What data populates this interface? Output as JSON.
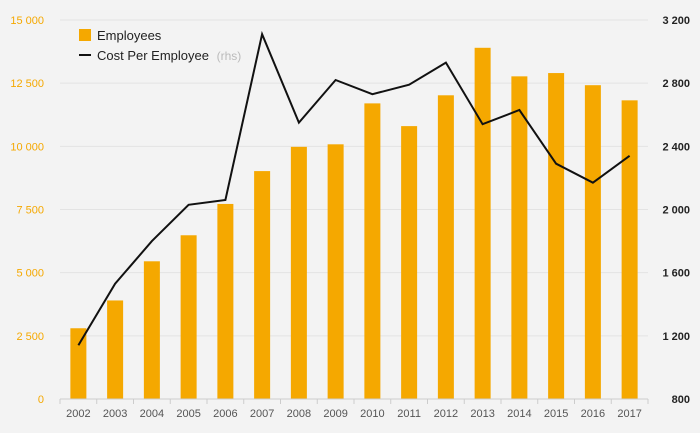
{
  "chart_data": {
    "type": "bar+line",
    "title": "",
    "categories": [
      "2002",
      "2003",
      "2004",
      "2005",
      "2006",
      "2007",
      "2008",
      "2009",
      "2010",
      "2011",
      "2012",
      "2013",
      "2014",
      "2015",
      "2016",
      "2017"
    ],
    "series": [
      {
        "name": "Employees",
        "type": "bar",
        "axis": "left",
        "color": "#f5a800",
        "values": [
          2800,
          3900,
          5450,
          6480,
          7720,
          9020,
          9980,
          10080,
          11700,
          10800,
          12020,
          13900,
          12770,
          12900,
          12420,
          11820
        ]
      },
      {
        "name": "Cost Per Employee",
        "type": "line",
        "axis": "right",
        "color": "#111111",
        "values": [
          1140,
          1530,
          1800,
          2030,
          2060,
          3110,
          2550,
          2820,
          2730,
          2790,
          2930,
          2540,
          2630,
          2290,
          2170,
          2340
        ]
      }
    ],
    "legend": {
      "position": "top-left",
      "items": [
        {
          "label": "Employees",
          "note": ""
        },
        {
          "label": "Cost Per Employee",
          "note": "(rhs)"
        }
      ]
    },
    "y_left": {
      "range": [
        0,
        15000
      ],
      "ticks": [
        0,
        2500,
        5000,
        7500,
        10000,
        12500,
        15000
      ],
      "tick_labels": [
        "0",
        "2 500",
        "5 000",
        "7 500",
        "10 000",
        "12 500",
        "15 000"
      ],
      "color": "#f5a800"
    },
    "y_right": {
      "range": [
        800,
        3200
      ],
      "ticks": [
        800,
        1200,
        1600,
        2000,
        2400,
        2800,
        3200
      ],
      "tick_labels": [
        "800",
        "1 200",
        "1 600",
        "2 000",
        "2 400",
        "2 800",
        "3 200"
      ],
      "color": "#222222"
    },
    "grid": true,
    "xlabel": "",
    "ylabel": ""
  }
}
